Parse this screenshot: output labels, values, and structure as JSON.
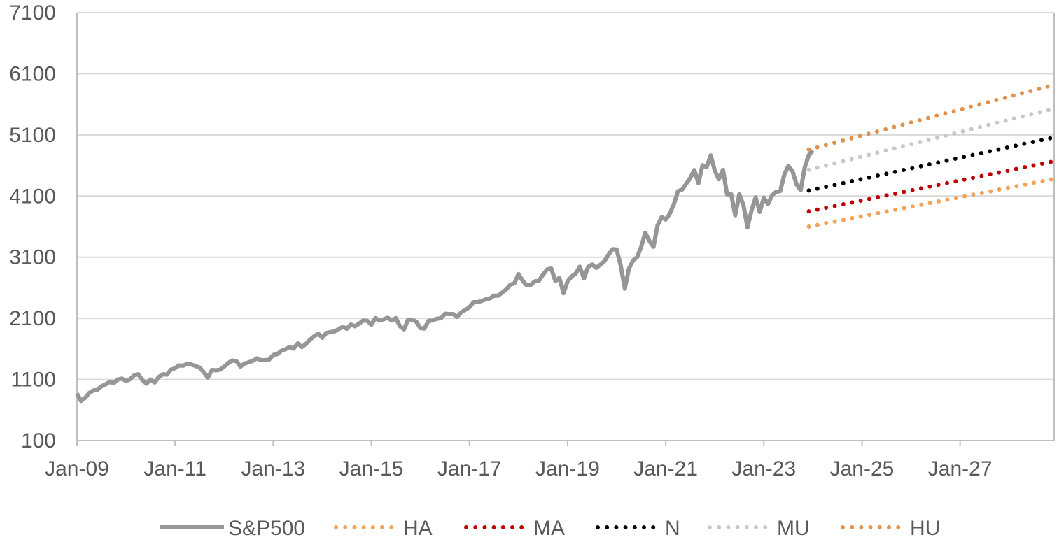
{
  "chart_data": {
    "type": "line",
    "title": "",
    "xlabel": "",
    "ylabel": "",
    "ylim": [
      100,
      7100
    ],
    "yticks": [
      100,
      1100,
      2100,
      3100,
      4100,
      5100,
      6100,
      7100
    ],
    "ytick_labels": [
      "100",
      "1100",
      "2100",
      "3100",
      "4100",
      "5100",
      "6100",
      "7100"
    ],
    "xlim": [
      "2009-01",
      "2028-12"
    ],
    "xticks": [
      "2009-01",
      "2011-01",
      "2013-01",
      "2015-01",
      "2017-01",
      "2019-01",
      "2021-01",
      "2023-01",
      "2025-01",
      "2027-01"
    ],
    "xtick_labels": [
      "Jan-09",
      "Jan-11",
      "Jan-13",
      "Jan-15",
      "Jan-17",
      "Jan-19",
      "Jan-21",
      "Jan-23",
      "Jan-25",
      "Jan-27"
    ],
    "grid": "horizontal",
    "legend_position": "bottom",
    "series": [
      {
        "name": "S&P500",
        "style": "solid",
        "color": "#969696",
        "points": [
          [
            "2009-01",
            870
          ],
          [
            "2009-02",
            750
          ],
          [
            "2009-03",
            800
          ],
          [
            "2009-04",
            880
          ],
          [
            "2009-05",
            920
          ],
          [
            "2009-06",
            930
          ],
          [
            "2009-07",
            990
          ],
          [
            "2009-08",
            1020
          ],
          [
            "2009-09",
            1060
          ],
          [
            "2009-10",
            1040
          ],
          [
            "2009-11",
            1100
          ],
          [
            "2009-12",
            1115
          ],
          [
            "2010-01",
            1075
          ],
          [
            "2010-02",
            1105
          ],
          [
            "2010-03",
            1170
          ],
          [
            "2010-04",
            1185
          ],
          [
            "2010-05",
            1090
          ],
          [
            "2010-06",
            1030
          ],
          [
            "2010-07",
            1100
          ],
          [
            "2010-08",
            1050
          ],
          [
            "2010-09",
            1140
          ],
          [
            "2010-10",
            1185
          ],
          [
            "2010-11",
            1180
          ],
          [
            "2010-12",
            1260
          ],
          [
            "2011-01",
            1285
          ],
          [
            "2011-02",
            1330
          ],
          [
            "2011-03",
            1325
          ],
          [
            "2011-04",
            1360
          ],
          [
            "2011-05",
            1345
          ],
          [
            "2011-06",
            1320
          ],
          [
            "2011-07",
            1295
          ],
          [
            "2011-08",
            1220
          ],
          [
            "2011-09",
            1130
          ],
          [
            "2011-10",
            1255
          ],
          [
            "2011-11",
            1250
          ],
          [
            "2011-12",
            1260
          ],
          [
            "2012-01",
            1310
          ],
          [
            "2012-02",
            1370
          ],
          [
            "2012-03",
            1410
          ],
          [
            "2012-04",
            1400
          ],
          [
            "2012-05",
            1310
          ],
          [
            "2012-06",
            1360
          ],
          [
            "2012-07",
            1380
          ],
          [
            "2012-08",
            1405
          ],
          [
            "2012-09",
            1445
          ],
          [
            "2012-10",
            1415
          ],
          [
            "2012-11",
            1415
          ],
          [
            "2012-12",
            1425
          ],
          [
            "2013-01",
            1500
          ],
          [
            "2013-02",
            1515
          ],
          [
            "2013-03",
            1570
          ],
          [
            "2013-04",
            1595
          ],
          [
            "2013-05",
            1630
          ],
          [
            "2013-06",
            1605
          ],
          [
            "2013-07",
            1690
          ],
          [
            "2013-08",
            1630
          ],
          [
            "2013-09",
            1680
          ],
          [
            "2013-10",
            1750
          ],
          [
            "2013-11",
            1805
          ],
          [
            "2013-12",
            1850
          ],
          [
            "2014-01",
            1780
          ],
          [
            "2014-02",
            1860
          ],
          [
            "2014-03",
            1875
          ],
          [
            "2014-04",
            1885
          ],
          [
            "2014-05",
            1925
          ],
          [
            "2014-06",
            1960
          ],
          [
            "2014-07",
            1930
          ],
          [
            "2014-08",
            2000
          ],
          [
            "2014-09",
            1970
          ],
          [
            "2014-10",
            2015
          ],
          [
            "2014-11",
            2065
          ],
          [
            "2014-12",
            2060
          ],
          [
            "2015-01",
            1995
          ],
          [
            "2015-02",
            2105
          ],
          [
            "2015-03",
            2065
          ],
          [
            "2015-04",
            2085
          ],
          [
            "2015-05",
            2110
          ],
          [
            "2015-06",
            2065
          ],
          [
            "2015-07",
            2105
          ],
          [
            "2015-08",
            1970
          ],
          [
            "2015-09",
            1920
          ],
          [
            "2015-10",
            2080
          ],
          [
            "2015-11",
            2080
          ],
          [
            "2015-12",
            2045
          ],
          [
            "2016-01",
            1940
          ],
          [
            "2016-02",
            1935
          ],
          [
            "2016-03",
            2060
          ],
          [
            "2016-04",
            2065
          ],
          [
            "2016-05",
            2095
          ],
          [
            "2016-06",
            2100
          ],
          [
            "2016-07",
            2175
          ],
          [
            "2016-08",
            2170
          ],
          [
            "2016-09",
            2170
          ],
          [
            "2016-10",
            2125
          ],
          [
            "2016-11",
            2200
          ],
          [
            "2016-12",
            2240
          ],
          [
            "2017-01",
            2280
          ],
          [
            "2017-02",
            2365
          ],
          [
            "2017-03",
            2365
          ],
          [
            "2017-04",
            2385
          ],
          [
            "2017-05",
            2410
          ],
          [
            "2017-06",
            2425
          ],
          [
            "2017-07",
            2470
          ],
          [
            "2017-08",
            2470
          ],
          [
            "2017-09",
            2520
          ],
          [
            "2017-10",
            2575
          ],
          [
            "2017-11",
            2650
          ],
          [
            "2017-12",
            2675
          ],
          [
            "2018-01",
            2825
          ],
          [
            "2018-02",
            2715
          ],
          [
            "2018-03",
            2640
          ],
          [
            "2018-04",
            2650
          ],
          [
            "2018-05",
            2705
          ],
          [
            "2018-06",
            2715
          ],
          [
            "2018-07",
            2815
          ],
          [
            "2018-08",
            2900
          ],
          [
            "2018-09",
            2915
          ],
          [
            "2018-10",
            2710
          ],
          [
            "2018-11",
            2760
          ],
          [
            "2018-12",
            2510
          ],
          [
            "2019-01",
            2705
          ],
          [
            "2019-02",
            2785
          ],
          [
            "2019-03",
            2835
          ],
          [
            "2019-04",
            2945
          ],
          [
            "2019-05",
            2750
          ],
          [
            "2019-06",
            2940
          ],
          [
            "2019-07",
            2980
          ],
          [
            "2019-08",
            2925
          ],
          [
            "2019-09",
            2975
          ],
          [
            "2019-10",
            3035
          ],
          [
            "2019-11",
            3140
          ],
          [
            "2019-12",
            3230
          ],
          [
            "2020-01",
            3225
          ],
          [
            "2020-02",
            2955
          ],
          [
            "2020-03",
            2585
          ],
          [
            "2020-04",
            2910
          ],
          [
            "2020-05",
            3045
          ],
          [
            "2020-06",
            3100
          ],
          [
            "2020-07",
            3270
          ],
          [
            "2020-08",
            3500
          ],
          [
            "2020-09",
            3365
          ],
          [
            "2020-10",
            3270
          ],
          [
            "2020-11",
            3620
          ],
          [
            "2020-12",
            3755
          ],
          [
            "2021-01",
            3715
          ],
          [
            "2021-02",
            3810
          ],
          [
            "2021-03",
            3970
          ],
          [
            "2021-04",
            4180
          ],
          [
            "2021-05",
            4205
          ],
          [
            "2021-06",
            4300
          ],
          [
            "2021-07",
            4395
          ],
          [
            "2021-08",
            4525
          ],
          [
            "2021-09",
            4310
          ],
          [
            "2021-10",
            4605
          ],
          [
            "2021-11",
            4570
          ],
          [
            "2021-12",
            4765
          ],
          [
            "2022-01",
            4515
          ],
          [
            "2022-02",
            4375
          ],
          [
            "2022-03",
            4530
          ],
          [
            "2022-04",
            4130
          ],
          [
            "2022-05",
            4130
          ],
          [
            "2022-06",
            3785
          ],
          [
            "2022-07",
            4130
          ],
          [
            "2022-08",
            3955
          ],
          [
            "2022-09",
            3585
          ],
          [
            "2022-10",
            3870
          ],
          [
            "2022-11",
            4080
          ],
          [
            "2022-12",
            3840
          ],
          [
            "2023-01",
            4075
          ],
          [
            "2023-02",
            3970
          ],
          [
            "2023-03",
            4110
          ],
          [
            "2023-04",
            4170
          ],
          [
            "2023-05",
            4180
          ],
          [
            "2023-06",
            4450
          ],
          [
            "2023-07",
            4590
          ],
          [
            "2023-08",
            4505
          ],
          [
            "2023-09",
            4290
          ],
          [
            "2023-10",
            4195
          ],
          [
            "2023-11",
            4570
          ],
          [
            "2023-12",
            4770
          ],
          [
            "2024-01",
            4845
          ]
        ]
      },
      {
        "name": "HA",
        "style": "dotted",
        "color": "#f4a259",
        "points": [
          [
            "2023-12",
            3600
          ],
          [
            "2028-12",
            4380
          ]
        ]
      },
      {
        "name": "MA",
        "style": "dotted",
        "color": "#c00000",
        "points": [
          [
            "2023-12",
            3850
          ],
          [
            "2028-12",
            4670
          ]
        ]
      },
      {
        "name": "N",
        "style": "dotted",
        "color": "#000000",
        "points": [
          [
            "2023-12",
            4190
          ],
          [
            "2028-12",
            5060
          ]
        ]
      },
      {
        "name": "MU",
        "style": "dotted",
        "color": "#c8c8c8",
        "points": [
          [
            "2023-12",
            4530
          ],
          [
            "2028-12",
            5530
          ]
        ]
      },
      {
        "name": "HU",
        "style": "dotted",
        "color": "#e0914c",
        "points": [
          [
            "2023-12",
            4860
          ],
          [
            "2028-12",
            5920
          ]
        ]
      }
    ]
  }
}
